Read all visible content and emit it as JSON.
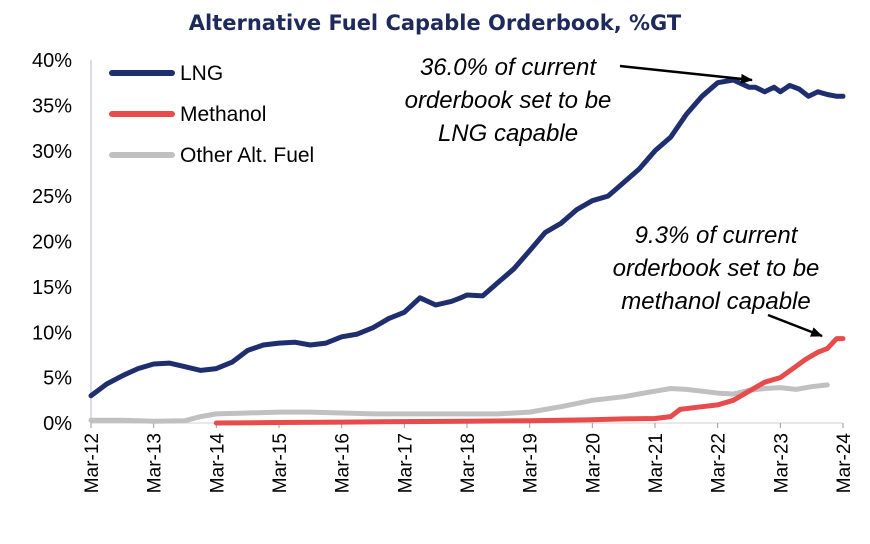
{
  "chart_data": {
    "type": "line",
    "title": "Alternative Fuel Capable Orderbook, %GT",
    "xlabel": "",
    "ylabel": "",
    "ylim": [
      0,
      40
    ],
    "yticks": [
      "0%",
      "5%",
      "10%",
      "15%",
      "20%",
      "25%",
      "30%",
      "35%",
      "40%"
    ],
    "ytick_values": [
      0,
      5,
      10,
      15,
      20,
      25,
      30,
      35,
      40
    ],
    "xlim": [
      2012.0,
      2024.0
    ],
    "xticks": [
      "Mar-12",
      "Mar-13",
      "Mar-14",
      "Mar-15",
      "Mar-16",
      "Mar-17",
      "Mar-18",
      "Mar-19",
      "Mar-20",
      "Mar-21",
      "Mar-22",
      "Mar-23",
      "Mar-24"
    ],
    "xtick_values": [
      2012,
      2013,
      2014,
      2015,
      2016,
      2017,
      2018,
      2019,
      2020,
      2021,
      2022,
      2023,
      2024
    ],
    "legend_position": "top-left",
    "series": [
      {
        "name": "LNG",
        "color": "#1f2e6e",
        "x": [
          2012.0,
          2012.25,
          2012.5,
          2012.75,
          2013.0,
          2013.25,
          2013.5,
          2013.75,
          2014.0,
          2014.25,
          2014.5,
          2014.75,
          2015.0,
          2015.25,
          2015.5,
          2015.75,
          2016.0,
          2016.25,
          2016.5,
          2016.75,
          2017.0,
          2017.25,
          2017.5,
          2017.75,
          2017.9,
          2018.0,
          2018.25,
          2018.5,
          2018.75,
          2019.0,
          2019.25,
          2019.5,
          2019.75,
          2020.0,
          2020.25,
          2020.5,
          2020.75,
          2021.0,
          2021.25,
          2021.5,
          2021.75,
          2022.0,
          2022.25,
          2022.5,
          2022.6,
          2022.75,
          2022.9,
          2023.0,
          2023.15,
          2023.3,
          2023.45,
          2023.6,
          2023.75,
          2023.9,
          2024.0
        ],
        "y": [
          3.0,
          4.3,
          5.2,
          6.0,
          6.5,
          6.6,
          6.2,
          5.8,
          6.0,
          6.7,
          8.0,
          8.6,
          8.8,
          8.9,
          8.6,
          8.8,
          9.5,
          9.8,
          10.5,
          11.5,
          12.2,
          13.8,
          13.0,
          13.4,
          13.8,
          14.1,
          14.0,
          15.5,
          17.0,
          19.0,
          21.0,
          22.0,
          23.5,
          24.5,
          25.0,
          26.5,
          28.0,
          30.0,
          31.5,
          34.0,
          36.0,
          37.5,
          37.8,
          37.0,
          37.0,
          36.5,
          37.0,
          36.5,
          37.2,
          36.8,
          36.0,
          36.5,
          36.2,
          36.0,
          36.0
        ]
      },
      {
        "name": "Methanol",
        "color": "#e84b4b",
        "x": [
          2014.0,
          2015.0,
          2016.0,
          2017.0,
          2018.0,
          2019.0,
          2020.0,
          2020.5,
          2021.0,
          2021.25,
          2021.4,
          2021.75,
          2022.0,
          2022.25,
          2022.5,
          2022.75,
          2023.0,
          2023.2,
          2023.4,
          2023.6,
          2023.75,
          2023.9,
          2024.0
        ],
        "y": [
          0.0,
          0.05,
          0.1,
          0.15,
          0.2,
          0.25,
          0.35,
          0.45,
          0.5,
          0.7,
          1.5,
          1.8,
          2.0,
          2.5,
          3.5,
          4.5,
          5.0,
          6.0,
          7.0,
          7.8,
          8.2,
          9.3,
          9.3
        ]
      },
      {
        "name": "Other Alt. Fuel",
        "color": "#c0c0c0",
        "x": [
          2012.0,
          2012.5,
          2013.0,
          2013.5,
          2013.75,
          2014.0,
          2014.5,
          2015.0,
          2015.5,
          2016.0,
          2016.5,
          2017.0,
          2017.5,
          2018.0,
          2018.5,
          2019.0,
          2019.5,
          2020.0,
          2020.5,
          2021.0,
          2021.25,
          2021.5,
          2021.75,
          2022.0,
          2022.25,
          2022.5,
          2022.75,
          2023.0,
          2023.25,
          2023.5,
          2023.75
        ],
        "y": [
          0.3,
          0.3,
          0.2,
          0.25,
          0.7,
          1.0,
          1.1,
          1.2,
          1.2,
          1.1,
          1.0,
          1.0,
          1.0,
          1.0,
          1.0,
          1.2,
          1.8,
          2.5,
          2.9,
          3.5,
          3.8,
          3.7,
          3.5,
          3.3,
          3.2,
          3.6,
          3.8,
          3.9,
          3.7,
          4.0,
          4.2
        ]
      }
    ],
    "annotations": [
      {
        "lines": [
          "36.0% of current",
          "orderbook set to be",
          "LNG capable"
        ],
        "series": "LNG",
        "target_value": 36.0
      },
      {
        "lines": [
          "9.3% of current",
          "orderbook set to be",
          "methanol capable"
        ],
        "series": "Methanol",
        "target_value": 9.3
      }
    ]
  }
}
